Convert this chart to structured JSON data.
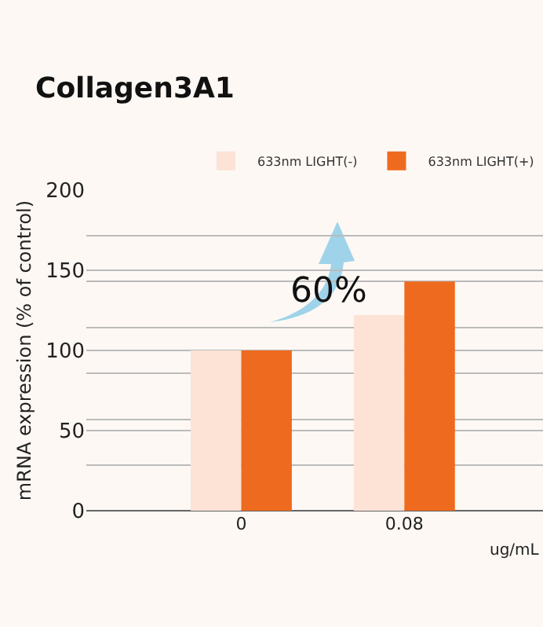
{
  "chart_data": {
    "type": "bar",
    "title": "Collagen3A1",
    "ylabel": "mRNA expression (% of control)",
    "categories": [
      "0",
      "0.08"
    ],
    "series": [
      {
        "name": "633nm LIGHT(-)",
        "color": "#fce3d5",
        "values": [
          100,
          122
        ]
      },
      {
        "name": "633nm LIGHT(+)",
        "color": "#ee6a1e",
        "values": [
          100,
          143
        ]
      }
    ],
    "ylim": [
      0,
      200
    ],
    "yticks": [
      0,
      {
        "value": 28.6,
        "label": null
      },
      50,
      {
        "value": 57.1,
        "label": null
      },
      {
        "value": 85.7,
        "label": null
      },
      100,
      {
        "value": 114.3,
        "label": null
      },
      {
        "value": 142.9,
        "label": null
      },
      150,
      {
        "value": 171.4,
        "label": null
      },
      200
    ],
    "annotations": [
      {
        "text": "60%",
        "x": "0.08",
        "y": 143
      },
      "ug/mL"
    ],
    "grid": "y",
    "legend": "top right"
  }
}
